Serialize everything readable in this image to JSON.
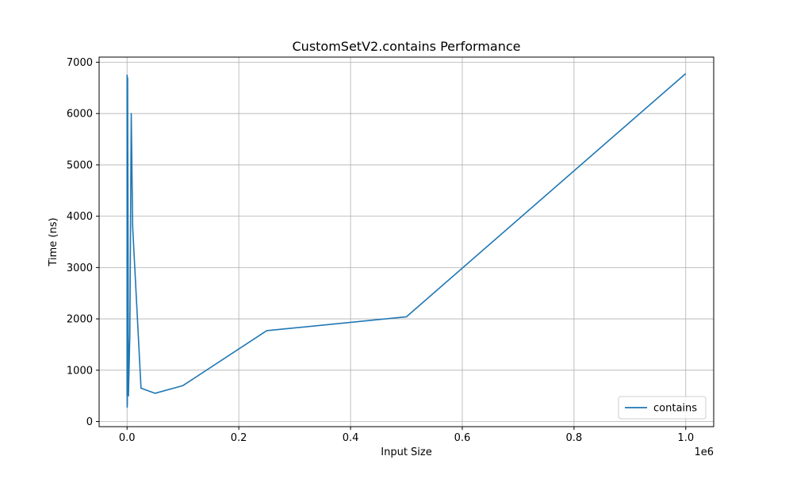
{
  "chart_data": {
    "type": "line",
    "title": "CustomSetV2.contains Performance",
    "xlabel": "Input Size",
    "ylabel": "Time (ns)",
    "x_offset_label": "1e6",
    "xlim": [
      -50000,
      1050000
    ],
    "ylim": [
      -100,
      7100
    ],
    "x_ticks": [
      0,
      200000,
      400000,
      600000,
      800000,
      1000000
    ],
    "x_tick_labels": [
      "0.0",
      "0.2",
      "0.4",
      "0.6",
      "0.8",
      "1.0"
    ],
    "y_ticks": [
      0,
      1000,
      2000,
      3000,
      4000,
      5000,
      6000,
      7000
    ],
    "y_tick_labels": [
      "0",
      "1000",
      "2000",
      "3000",
      "4000",
      "5000",
      "6000",
      "7000"
    ],
    "grid": true,
    "legend_position": "lower-right",
    "series": [
      {
        "name": "contains",
        "color": "#1f77b4",
        "x": [
          10,
          50,
          100,
          250,
          500,
          1000,
          2500,
          5000,
          7500,
          10000,
          25000,
          50000,
          100000,
          250000,
          500000,
          1000000
        ],
        "y": [
          520,
          6750,
          600,
          280,
          350,
          6700,
          500,
          1700,
          6000,
          3800,
          650,
          550,
          700,
          1770,
          2040,
          6780
        ]
      }
    ]
  }
}
